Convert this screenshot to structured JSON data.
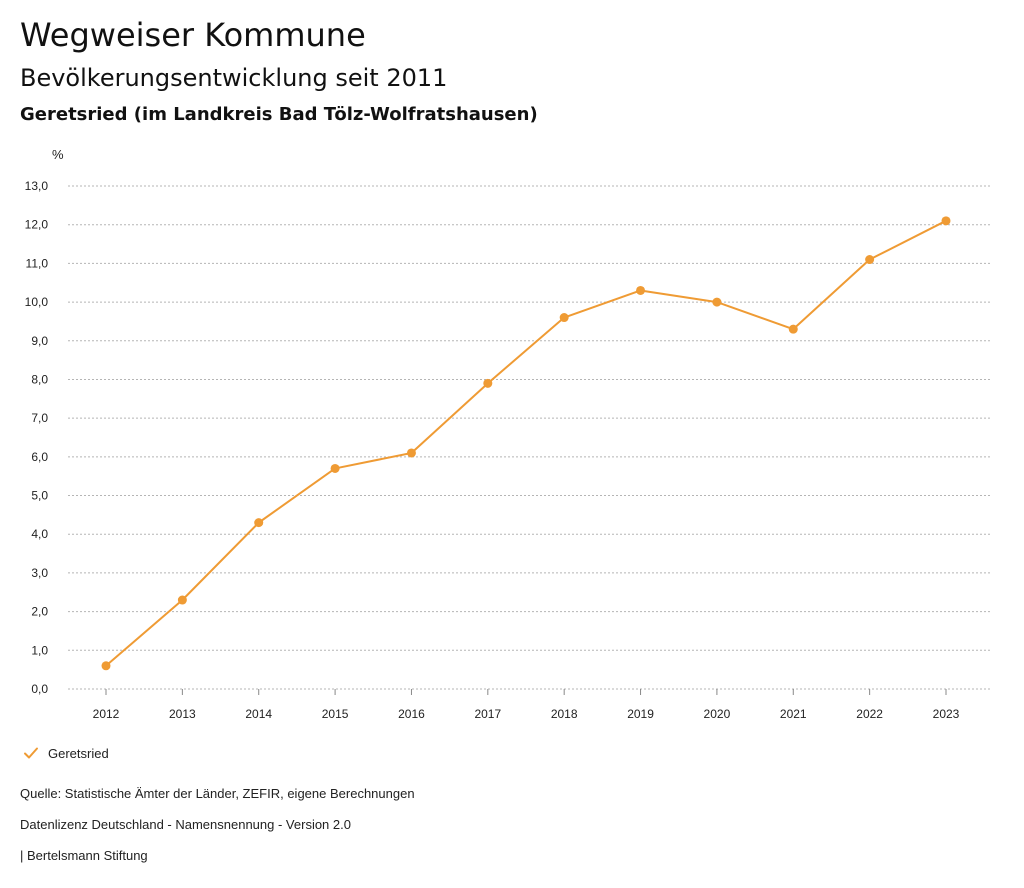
{
  "header": {
    "title": "Wegweiser Kommune",
    "subtitle": "Bevölkerungsentwicklung seit 2011",
    "region": "Geretsried (im Landkreis Bad Tölz-Wolfratshausen)"
  },
  "legend": {
    "items": [
      {
        "label": "Geretsried",
        "icon": "check-icon",
        "color": "#ef9b34"
      }
    ]
  },
  "footer": {
    "source": "Quelle: Statistische Ämter der Länder, ZEFIR, eigene Berechnungen",
    "license": "Datenlizenz Deutschland - Namensnennung - Version 2.0",
    "publisher": "| Bertelsmann Stiftung"
  },
  "chart_data": {
    "type": "line",
    "unit_label": "%",
    "categories": [
      "2012",
      "2013",
      "2014",
      "2015",
      "2016",
      "2017",
      "2018",
      "2019",
      "2020",
      "2021",
      "2022",
      "2023"
    ],
    "series": [
      {
        "name": "Geretsried",
        "color": "#ef9b34",
        "values": [
          0.6,
          2.3,
          4.3,
          5.7,
          6.1,
          7.9,
          9.6,
          10.3,
          10.0,
          9.3,
          11.1,
          12.1
        ]
      }
    ],
    "ylim": [
      0,
      13
    ],
    "yticks": [
      "0,0",
      "1,0",
      "2,0",
      "3,0",
      "4,0",
      "5,0",
      "6,0",
      "7,0",
      "8,0",
      "9,0",
      "10,0",
      "11,0",
      "12,0",
      "13,0"
    ],
    "grid": true,
    "grid_style": "dotted",
    "legend_position": "bottom-left"
  }
}
